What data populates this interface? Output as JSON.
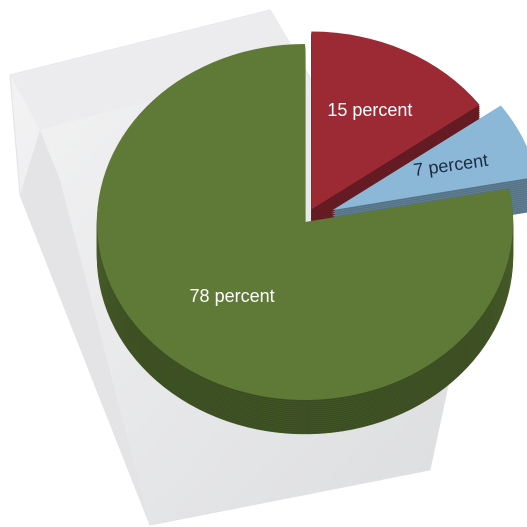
{
  "chart_data": {
    "type": "pie",
    "values": [
      15,
      7,
      78
    ],
    "value_labels": [
      "15 percent",
      "7 percent",
      "78 percent"
    ],
    "colors": [
      "#9b2a35",
      "#8ab8d6",
      "#5e7a36"
    ],
    "label_colors": [
      "#ffffff",
      "#1e2a44",
      "#ffffff"
    ]
  }
}
